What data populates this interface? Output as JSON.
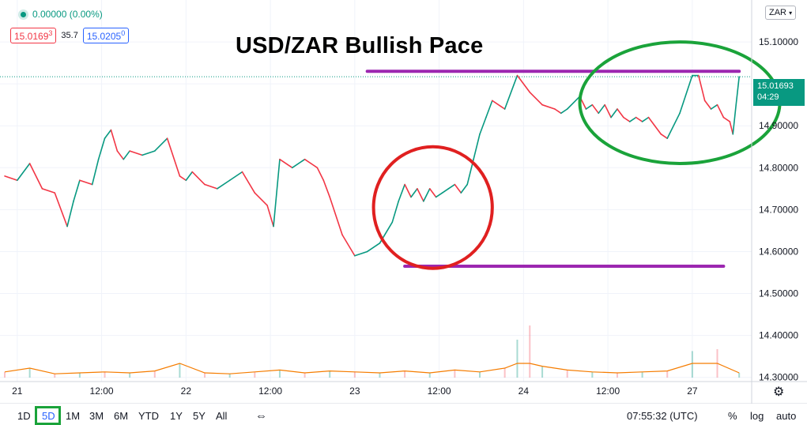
{
  "header": {
    "change": "0.00000 (0.00%)",
    "bid": "15.0169",
    "bid_sup": "3",
    "spread": "35.7",
    "ask": "15.0205",
    "ask_sup": "0",
    "currency": "ZAR"
  },
  "last_price": {
    "value": "15.01693",
    "countdown": "04:29",
    "color": "#089981"
  },
  "bottom": {
    "timeframes": [
      "1D",
      "5D",
      "1M",
      "3M",
      "6M",
      "YTD",
      "1Y",
      "5Y",
      "All"
    ],
    "active_timeframe": "5D",
    "time": "07:55:32 (UTC)",
    "percent": "%",
    "log": "log",
    "auto": "auto"
  },
  "icons": {
    "status": "live-dot-icon",
    "range": "date-range-icon",
    "settings": "gear-icon"
  },
  "chart_data": {
    "type": "line",
    "title": "USD/ZAR Bullish Pace",
    "xlabel": "",
    "ylabel": "",
    "x_ticks": [
      {
        "x": 0,
        "label": "21"
      },
      {
        "x": 13.5,
        "label": "12:00"
      },
      {
        "x": 27,
        "label": "22"
      },
      {
        "x": 40.5,
        "label": "12:00"
      },
      {
        "x": 54,
        "label": "23"
      },
      {
        "x": 67.5,
        "label": "12:00"
      },
      {
        "x": 81,
        "label": "24"
      },
      {
        "x": 94.5,
        "label": "12:00"
      },
      {
        "x": 108,
        "label": "27"
      }
    ],
    "y_ticks": [
      "15.10000",
      "15.00000",
      "14.90000",
      "14.80000",
      "14.70000",
      "14.60000",
      "14.50000",
      "14.40000",
      "14.30000"
    ],
    "ylim": [
      14.29,
      15.2
    ],
    "xlim": [
      -2,
      117.5
    ],
    "grid": true,
    "colors": {
      "up": "#089981",
      "down": "#f23645",
      "volume_ma": "#f57c00",
      "resistance": "#9c27b0",
      "bull_ellipse": "#1aa33a",
      "bear_ellipse": "#e02020"
    },
    "series": [
      {
        "x": [
          -2,
          0,
          2,
          4,
          6,
          8,
          9,
          10,
          12,
          13,
          14,
          15,
          16,
          17,
          18,
          20,
          22,
          24,
          26,
          27,
          28,
          30,
          32,
          34,
          36,
          38,
          40,
          41,
          42,
          44,
          46,
          47,
          48,
          49,
          50,
          52,
          54,
          56,
          58,
          60,
          61,
          62,
          63,
          64,
          65,
          66,
          67,
          68,
          69,
          70,
          71,
          72,
          73,
          74,
          75,
          76,
          78,
          80,
          82,
          84,
          86,
          87,
          88,
          90,
          91,
          92,
          93,
          94,
          95,
          96,
          97,
          98,
          99,
          100,
          101,
          102,
          103,
          104,
          106,
          108,
          109,
          110,
          111,
          112,
          113,
          114,
          114.5,
          115,
          115.5
        ],
        "values": [
          14.78,
          14.77,
          14.81,
          14.75,
          14.74,
          14.66,
          14.72,
          14.77,
          14.76,
          14.82,
          14.87,
          14.89,
          14.84,
          14.82,
          14.84,
          14.83,
          14.84,
          14.87,
          14.78,
          14.77,
          14.79,
          14.76,
          14.75,
          14.77,
          14.79,
          14.74,
          14.71,
          14.66,
          14.82,
          14.8,
          14.82,
          14.81,
          14.8,
          14.77,
          14.73,
          14.64,
          14.59,
          14.6,
          14.62,
          14.67,
          14.72,
          14.76,
          14.73,
          14.75,
          14.72,
          14.75,
          14.73,
          14.74,
          14.75,
          14.76,
          14.74,
          14.76,
          14.82,
          14.88,
          14.92,
          14.96,
          14.94,
          15.02,
          14.98,
          14.95,
          14.94,
          14.93,
          14.94,
          14.97,
          14.94,
          14.95,
          14.93,
          14.95,
          14.92,
          14.94,
          14.92,
          14.91,
          14.92,
          14.91,
          14.92,
          14.9,
          14.88,
          14.87,
          14.93,
          15.02,
          15.02,
          14.96,
          14.94,
          14.95,
          14.92,
          14.91,
          14.88,
          14.95,
          15.017
        ]
      },
      {
        "x": [
          -2,
          2,
          6,
          10,
          14,
          18,
          22,
          26,
          30,
          34,
          38,
          42,
          46,
          50,
          54,
          58,
          62,
          66,
          70,
          74,
          78,
          80,
          82,
          84,
          88,
          92,
          96,
          100,
          104,
          108,
          112,
          115.5
        ],
        "values": [
          0.06,
          0.1,
          0.04,
          0.05,
          0.06,
          0.05,
          0.07,
          0.15,
          0.05,
          0.04,
          0.06,
          0.08,
          0.05,
          0.07,
          0.06,
          0.05,
          0.07,
          0.05,
          0.08,
          0.06,
          0.1,
          0.4,
          0.55,
          0.12,
          0.08,
          0.06,
          0.05,
          0.06,
          0.07,
          0.28,
          0.3,
          0.05
        ]
      }
    ],
    "annotations": [
      {
        "type": "hline",
        "y": 15.03,
        "x_from": 56,
        "x_to": 115.5
      },
      {
        "type": "hline",
        "y": 14.565,
        "x_from": 62,
        "x_to": 113
      },
      {
        "type": "ellipse",
        "cx": 66.5,
        "cy": 14.705,
        "rx": 9.5,
        "ry": 0.145
      },
      {
        "type": "ellipse",
        "cx": 106,
        "cy": 14.955,
        "rx": 16,
        "ry": 0.145
      }
    ]
  }
}
